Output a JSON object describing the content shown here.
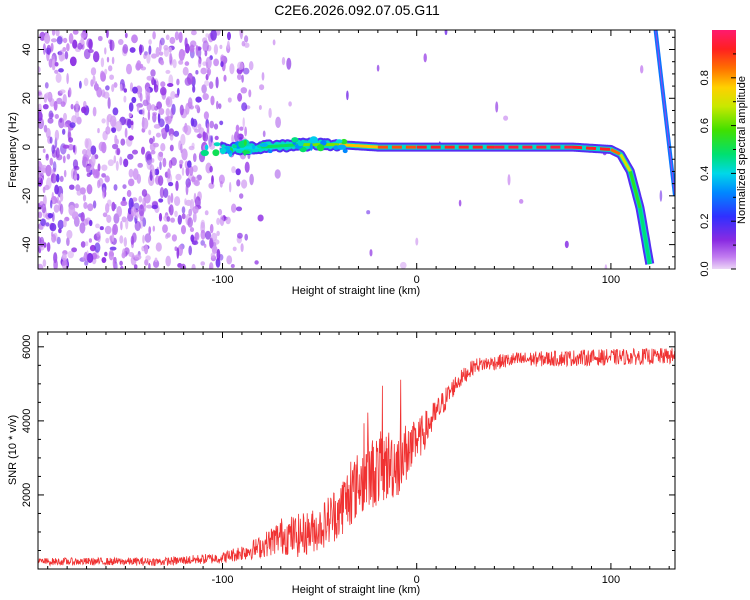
{
  "title": "C2E6.2026.092.07.05.G11",
  "chart_data": [
    {
      "type": "heatmap",
      "name": "spectrogram",
      "xlabel": "Height of straight line (km)",
      "ylabel": "Frequency (Hz)",
      "xlim": [
        -195,
        133
      ],
      "ylim": [
        -50,
        48
      ],
      "xticks": [
        -100,
        0,
        100
      ],
      "xtick_labels": [
        "-100",
        "0",
        "100"
      ],
      "yticks": [
        -40,
        -20,
        0,
        20,
        40
      ],
      "ytick_labels": [
        "-40",
        "-20",
        "0",
        "20",
        "40"
      ],
      "colorbar": {
        "label": "Normalized spectral amplitude",
        "range": [
          0,
          1
        ],
        "ticks": [
          0.0,
          0.2,
          0.4,
          0.6,
          0.8
        ],
        "tick_labels": [
          "0.0",
          "0.2",
          "0.4",
          "0.6",
          "0.8"
        ]
      },
      "ridge": {
        "description": "dominant frequency track",
        "x": [
          -100,
          -80,
          -60,
          -40,
          -20,
          0,
          40,
          80,
          100,
          105,
          110,
          115,
          120
        ],
        "y": [
          -1,
          0,
          1,
          1,
          0,
          0,
          0,
          0,
          -1,
          -3,
          -10,
          -25,
          -48
        ],
        "amplitude": [
          0.35,
          0.45,
          0.55,
          0.7,
          0.85,
          0.9,
          0.95,
          0.95,
          0.9,
          0.8,
          0.6,
          0.5,
          0.45
        ]
      },
      "secondary_ridge": {
        "x": [
          123,
          133
        ],
        "y": [
          48,
          -20
        ],
        "amplitude": 0.3
      }
    },
    {
      "type": "line",
      "name": "snr",
      "xlabel": "Height of straight line (km)",
      "ylabel": "SNR (10 * v/v)",
      "xlim": [
        -195,
        133
      ],
      "ylim": [
        0,
        6400
      ],
      "xticks": [
        -100,
        0,
        100
      ],
      "xtick_labels": [
        "-100",
        "0",
        "100"
      ],
      "yticks": [
        2000,
        4000,
        6000
      ],
      "ytick_labels": [
        "2000",
        "4000",
        "6000"
      ],
      "color": "#f03232",
      "envelope": {
        "x": [
          -195,
          -130,
          -100,
          -80,
          -70,
          -60,
          -50,
          -40,
          -30,
          -20,
          -10,
          0,
          10,
          20,
          30,
          50,
          80,
          133
        ],
        "y": [
          200,
          200,
          300,
          600,
          900,
          900,
          1100,
          1600,
          2300,
          2700,
          2900,
          3400,
          4200,
          5000,
          5500,
          5650,
          5700,
          5750
        ],
        "noise": [
          100,
          110,
          150,
          300,
          500,
          600,
          600,
          800,
          900,
          1000,
          1000,
          600,
          400,
          250,
          200,
          200,
          220,
          220
        ]
      }
    }
  ]
}
